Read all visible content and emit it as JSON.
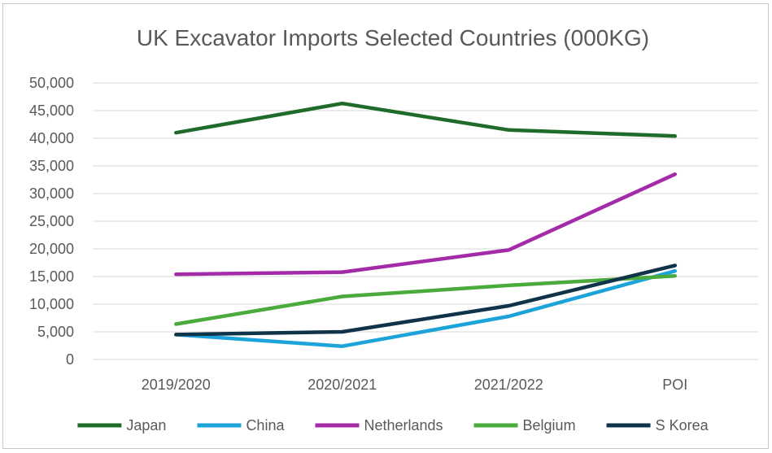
{
  "chart_data": {
    "type": "line",
    "title": "UK Excavator Imports  Selected Countries (000KG)",
    "xlabel": "",
    "ylabel": "",
    "categories": [
      "2019/2020",
      "2020/2021",
      "2021/2022",
      "POI"
    ],
    "ylim": [
      0,
      50000
    ],
    "y_ticks": [
      "0",
      "5,000",
      "10,000",
      "15,000",
      "20,000",
      "25,000",
      "30,000",
      "35,000",
      "40,000",
      "45,000",
      "50,000"
    ],
    "grid": true,
    "legend_position": "bottom",
    "series": [
      {
        "name": "Japan",
        "color": "#1e6b2a",
        "values": [
          41000,
          46300,
          41500,
          40400
        ]
      },
      {
        "name": "China",
        "color": "#1ca3da",
        "values": [
          4500,
          2400,
          7800,
          16000
        ]
      },
      {
        "name": "Netherlands",
        "color": "#a32ba8",
        "values": [
          15400,
          15800,
          19800,
          33500
        ]
      },
      {
        "name": "Belgium",
        "color": "#4aaa3c",
        "values": [
          6400,
          11400,
          13400,
          15100
        ]
      },
      {
        "name": "S Korea",
        "color": "#0f3349",
        "values": [
          4500,
          5000,
          9700,
          17000
        ]
      }
    ]
  }
}
